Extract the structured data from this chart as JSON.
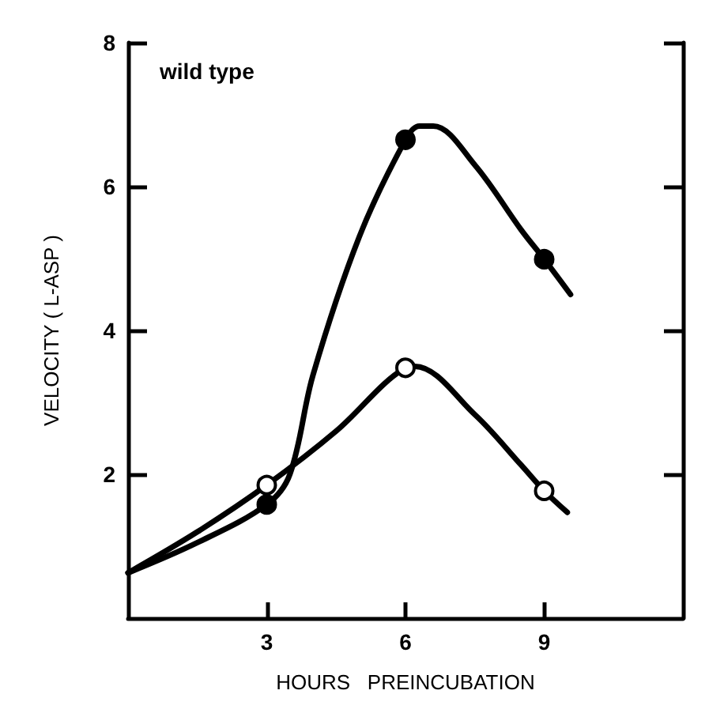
{
  "chart_data": {
    "type": "line",
    "xlabel": "HOURS   PREINCUBATION",
    "ylabel": "VELOCITY ( L-ASP )",
    "annotations": [
      "wild type"
    ],
    "xlim": [
      0,
      12
    ],
    "xticks": [
      3,
      6,
      9
    ],
    "ylim": [
      0,
      8
    ],
    "yticks": [
      2,
      4,
      6,
      8
    ],
    "grid": false,
    "series": [
      {
        "marker": "none",
        "color": "#000000",
        "x": [
          0,
          1.5,
          3,
          3.5,
          4,
          5,
          6,
          6.3,
          6.6,
          7.5,
          8.5,
          9,
          9.57
        ],
        "values": [
          0.63,
          1.05,
          1.58,
          2.0,
          3.38,
          5.3,
          6.65,
          6.84,
          6.84,
          6.3,
          5.4,
          4.99,
          4.5
        ]
      },
      {
        "marker": "none",
        "color": "#000000",
        "x": [
          0,
          1.5,
          3,
          4.5,
          6,
          6.2,
          7.5,
          8.5,
          9,
          9.5
        ],
        "values": [
          0.63,
          1.2,
          1.85,
          2.6,
          3.48,
          3.5,
          2.83,
          2.13,
          1.77,
          1.47
        ]
      },
      {
        "type": "scatter",
        "marker": "circle",
        "color": "#000000",
        "x": [
          3,
          6,
          9
        ],
        "values": [
          1.58,
          6.65,
          4.99
        ]
      },
      {
        "type": "scatter",
        "marker": "circle",
        "color": "#ffffff",
        "x": [
          3,
          6,
          9
        ],
        "values": [
          1.85,
          3.48,
          1.77
        ]
      }
    ]
  }
}
